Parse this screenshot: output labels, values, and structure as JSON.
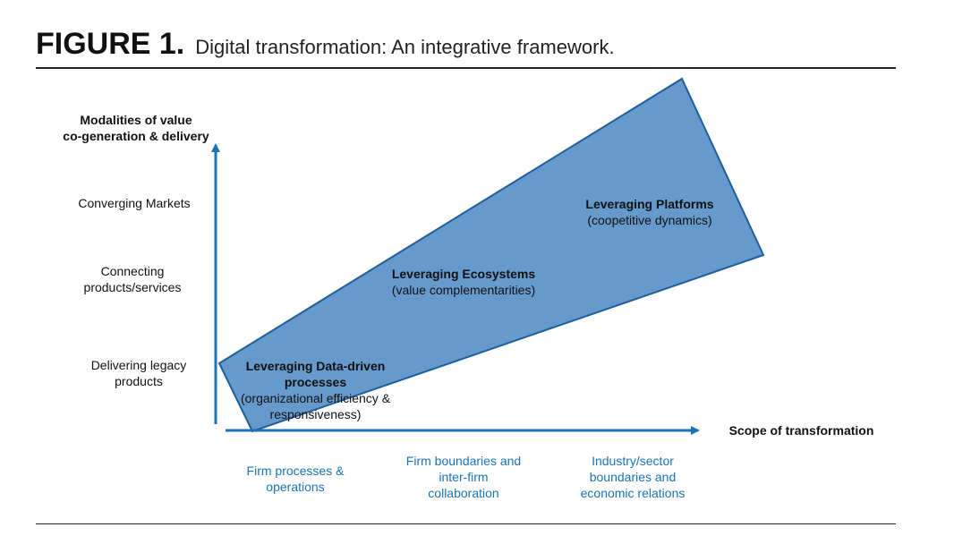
{
  "figure": {
    "label": "FIGURE 1.",
    "title": "Digital transformation: An integrative framework."
  },
  "y_axis": {
    "title_line1": "Modalities of value",
    "title_line2": "co-generation & delivery",
    "levels": [
      {
        "line1": "Converging Markets",
        "line2": ""
      },
      {
        "line1": "Connecting",
        "line2": "products/services"
      },
      {
        "line1": "Delivering legacy",
        "line2": "products"
      }
    ]
  },
  "x_axis": {
    "title": "Scope of transformation",
    "levels": [
      {
        "line1": "Firm processes &",
        "line2": "operations",
        "line3": ""
      },
      {
        "line1": "Firm boundaries and",
        "line2": "inter-firm",
        "line3": "collaboration"
      },
      {
        "line1": "Industry/sector",
        "line2": "boundaries and",
        "line3": "economic relations"
      }
    ]
  },
  "regions": [
    {
      "title_line1": "Leveraging Data-driven",
      "title_line2": "processes",
      "sub_line1": "(organizational efficiency &",
      "sub_line2": "responsiveness)"
    },
    {
      "title_line1": "Leveraging Ecosystems",
      "sub_line1": "(value complementarities)"
    },
    {
      "title_line1": "Leveraging Platforms",
      "sub_line1": "(coopetitive dynamics)"
    }
  ],
  "colors": {
    "band_fill": "#6699cc",
    "band_stroke": "#1f5f99",
    "axis": "#1a73b5",
    "x_level_text": "#1a73b5"
  }
}
